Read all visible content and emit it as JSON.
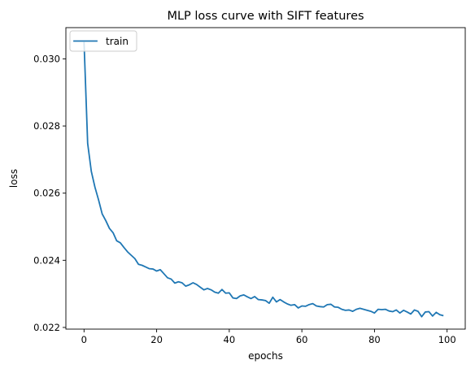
{
  "chart_data": {
    "type": "line",
    "title": "MLP loss curve with SIFT features",
    "xlabel": "epochs",
    "ylabel": "loss",
    "xlim": [
      -5,
      105
    ],
    "ylim": [
      0.02195,
      0.03093
    ],
    "xticks": [
      0,
      20,
      40,
      60,
      80,
      100
    ],
    "yticks": [
      0.022,
      0.024,
      0.026,
      0.028,
      0.03
    ],
    "xtick_labels": [
      "0",
      "20",
      "40",
      "60",
      "80",
      "100"
    ],
    "ytick_labels": [
      "0.022",
      "0.024",
      "0.026",
      "0.028",
      "0.030"
    ],
    "grid": false,
    "legend": {
      "placement": "upper-left",
      "entries": [
        {
          "label": "train",
          "color": "#1f77b4"
        }
      ]
    },
    "series": [
      {
        "name": "train",
        "color": "#1f77b4",
        "x": [
          0,
          1,
          2,
          3,
          4,
          5,
          6,
          7,
          8,
          9,
          10,
          11,
          12,
          13,
          14,
          15,
          16,
          17,
          18,
          19,
          20,
          21,
          22,
          23,
          24,
          25,
          26,
          27,
          28,
          29,
          30,
          31,
          32,
          33,
          34,
          35,
          36,
          37,
          38,
          39,
          40,
          41,
          42,
          43,
          44,
          45,
          46,
          47,
          48,
          49,
          50,
          51,
          52,
          53,
          54,
          55,
          56,
          57,
          58,
          59,
          60,
          61,
          62,
          63,
          64,
          65,
          66,
          67,
          68,
          69,
          70,
          71,
          72,
          73,
          74,
          75,
          76,
          77,
          78,
          79,
          80,
          81,
          82,
          83,
          84,
          85,
          86,
          87,
          88,
          89,
          90,
          91,
          92,
          93,
          94,
          95,
          96,
          97,
          98,
          99
        ],
        "values": [
          0.0305,
          0.02748,
          0.02665,
          0.02618,
          0.0258,
          0.02538,
          0.02518,
          0.02495,
          0.02482,
          0.02458,
          0.02452,
          0.02438,
          0.02425,
          0.02415,
          0.02405,
          0.02388,
          0.02385,
          0.0238,
          0.02375,
          0.02374,
          0.02368,
          0.02372,
          0.0236,
          0.02348,
          0.02344,
          0.02332,
          0.02336,
          0.02333,
          0.02323,
          0.02327,
          0.02333,
          0.02328,
          0.0232,
          0.02312,
          0.02316,
          0.02312,
          0.02305,
          0.02302,
          0.02313,
          0.02302,
          0.02303,
          0.02288,
          0.02286,
          0.02294,
          0.02297,
          0.02291,
          0.02286,
          0.02292,
          0.02283,
          0.02282,
          0.0228,
          0.02272,
          0.0229,
          0.02276,
          0.02283,
          0.02276,
          0.0227,
          0.02266,
          0.02268,
          0.02258,
          0.02264,
          0.02263,
          0.02268,
          0.02271,
          0.02264,
          0.02262,
          0.02261,
          0.02268,
          0.02269,
          0.02261,
          0.0226,
          0.02254,
          0.02251,
          0.02252,
          0.02248,
          0.02254,
          0.02257,
          0.02254,
          0.02251,
          0.02248,
          0.02243,
          0.02254,
          0.02253,
          0.02254,
          0.02249,
          0.02247,
          0.02252,
          0.02243,
          0.02251,
          0.02246,
          0.0224,
          0.02252,
          0.02248,
          0.02232,
          0.02246,
          0.02247,
          0.02234,
          0.02245,
          0.02238,
          0.02235
        ]
      }
    ]
  }
}
